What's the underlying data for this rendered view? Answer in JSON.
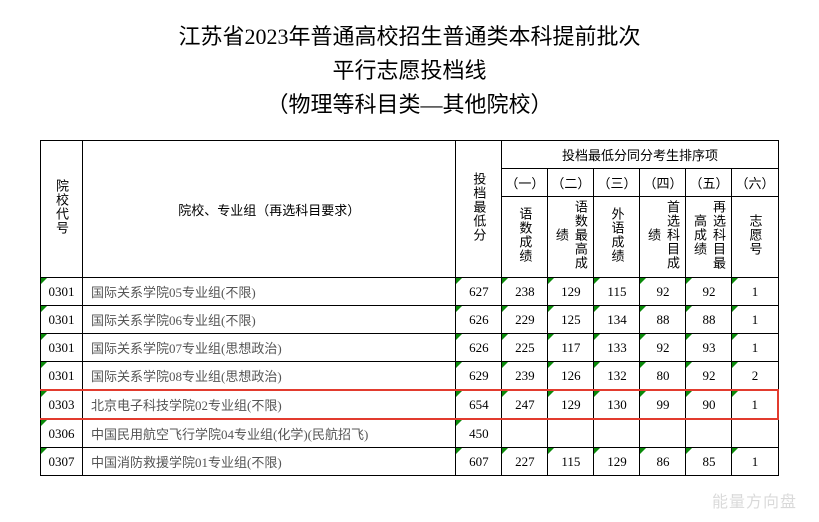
{
  "title": {
    "line1": "江苏省2023年普通高校招生普通类本科提前批次",
    "line2": "平行志愿投档线",
    "line3": "（物理等科目类—其他院校）"
  },
  "header": {
    "code": "院校代号",
    "name": "院校、专业组（再选科目要求）",
    "minscore": "投档最低分",
    "tiebreak_group": "投档最低分同分考生排序项",
    "sub_num": [
      "（一）",
      "（二）",
      "（三）",
      "（四）",
      "（五）",
      "（六）"
    ],
    "sub_lbl": [
      "语数成绩",
      "语数最高成绩",
      "外语成绩",
      "首选科目成绩",
      "再选科目最高成绩",
      "志愿号"
    ]
  },
  "rows": [
    {
      "code": "0301",
      "name": "国际关系学院05专业组(不限)",
      "min": "627",
      "s": [
        "238",
        "129",
        "115",
        "92",
        "92",
        "1"
      ]
    },
    {
      "code": "0301",
      "name": "国际关系学院06专业组(不限)",
      "min": "626",
      "s": [
        "229",
        "125",
        "134",
        "88",
        "88",
        "1"
      ]
    },
    {
      "code": "0301",
      "name": "国际关系学院07专业组(思想政治)",
      "min": "626",
      "s": [
        "225",
        "117",
        "133",
        "92",
        "93",
        "1"
      ]
    },
    {
      "code": "0301",
      "name": "国际关系学院08专业组(思想政治)",
      "min": "629",
      "s": [
        "239",
        "126",
        "132",
        "80",
        "92",
        "2"
      ]
    },
    {
      "code": "0303",
      "name": "北京电子科技学院02专业组(不限)",
      "min": "654",
      "s": [
        "247",
        "129",
        "130",
        "99",
        "90",
        "1"
      ],
      "hl": true
    },
    {
      "code": "0306",
      "name": "中国民用航空飞行学院04专业组(化学)(民航招飞)",
      "min": "450",
      "s": [
        "",
        "",
        "",
        "",
        "",
        ""
      ]
    },
    {
      "code": "0307",
      "name": "中国消防救援学院01专业组(不限)",
      "min": "607",
      "s": [
        "227",
        "115",
        "129",
        "86",
        "85",
        "1"
      ]
    }
  ],
  "watermark": "能量方向盘"
}
